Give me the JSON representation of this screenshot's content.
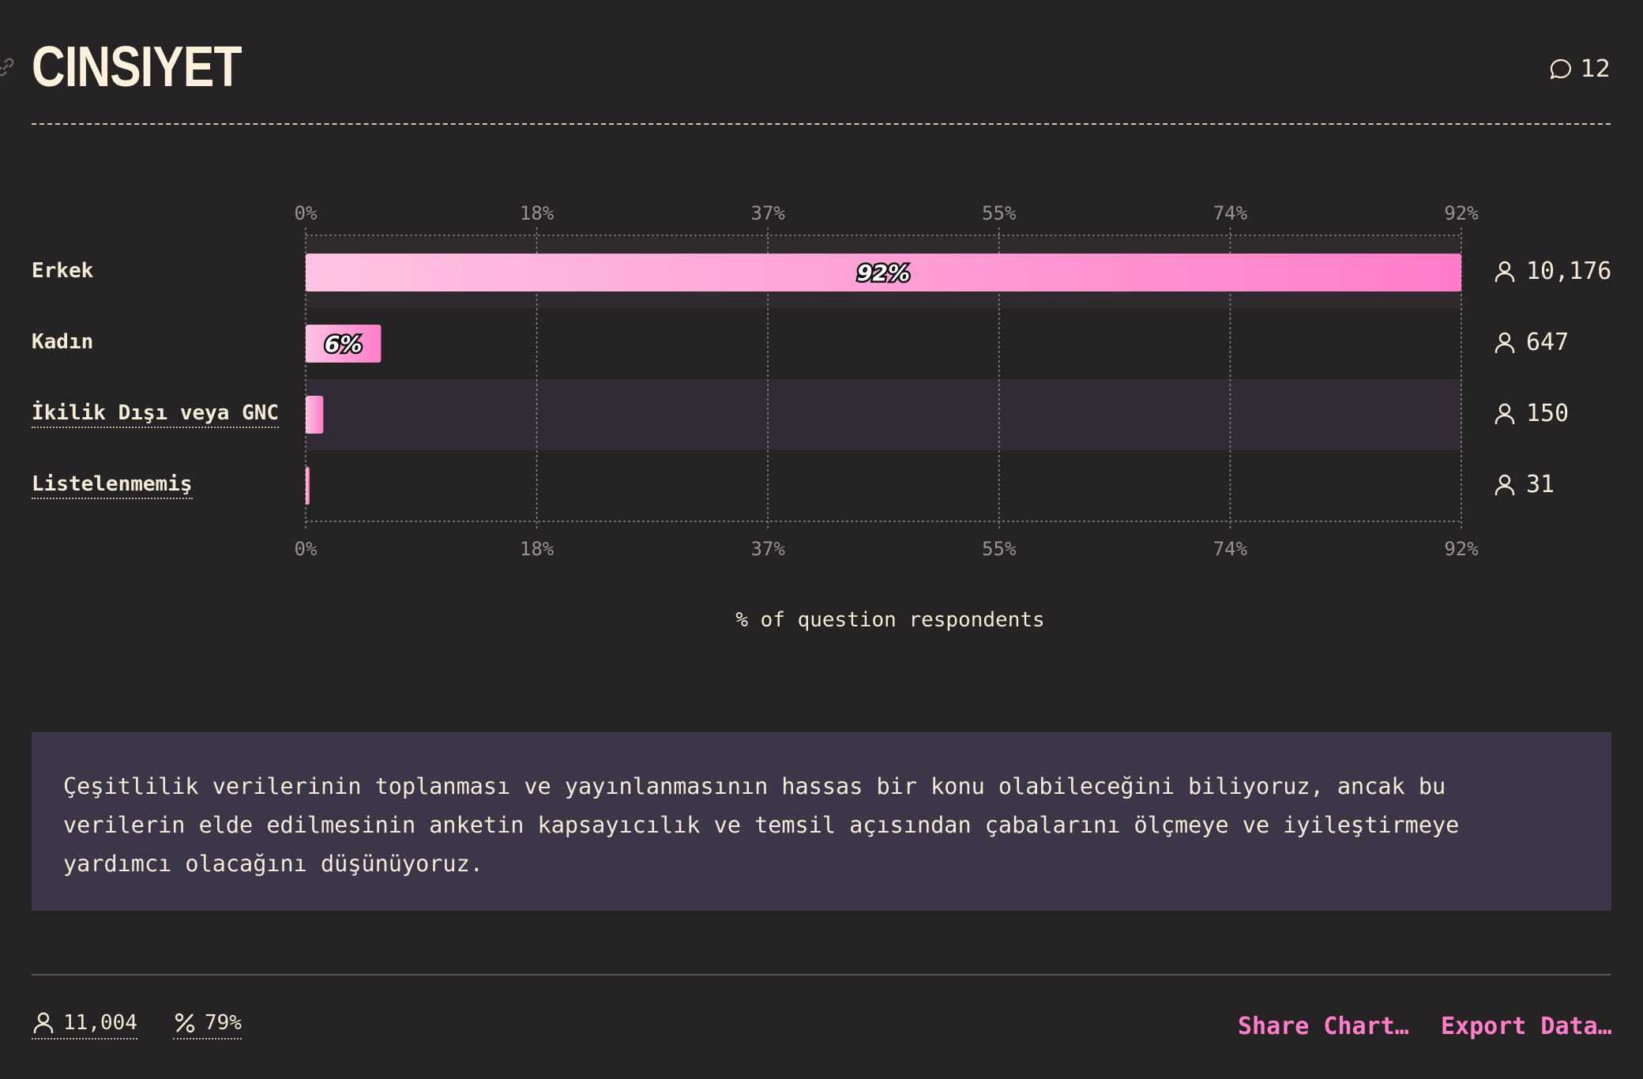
{
  "header": {
    "title": "CINSIYET",
    "comment_count": "12"
  },
  "chart_data": {
    "type": "bar",
    "orientation": "horizontal",
    "categories": [
      "Erkek",
      "Kadın",
      "İkilik Dışı veya GNC",
      "Listelenmemiş"
    ],
    "values": [
      92,
      6,
      1.4,
      0.3
    ],
    "value_labels": [
      "92%",
      "6%",
      "",
      ""
    ],
    "counts": [
      "10,176",
      "647",
      "150",
      "31"
    ],
    "xlabel": "% of question respondents",
    "ylabel": "",
    "xlim": [
      0,
      92
    ],
    "ticks": [
      "0%",
      "18%",
      "37%",
      "55%",
      "74%",
      "92%"
    ],
    "tick_values": [
      0,
      18.4,
      36.8,
      55.2,
      73.6,
      92
    ],
    "grid": true,
    "bar_color_start": "#ffc3e4",
    "bar_color_end": "#ff7cc8"
  },
  "note": {
    "text": "Çeşitlilik verilerinin toplanması ve yayınlanmasının hassas bir konu olabileceğini biliyoruz, ancak bu verilerin elde edilmesinin anketin kapsayıcılık ve temsil açısından çabalarını ölçmeye ve iyileştirmeye yardımcı olacağını düşünüyoruz."
  },
  "footer": {
    "respondents": "11,004",
    "percent": "79%",
    "share_label": "Share Chart…",
    "export_label": "Export Data…"
  },
  "colors": {
    "background": "#262324",
    "accent": "#ff7fc8",
    "note_bg": "#3d3548"
  },
  "icons": [
    "link-icon",
    "comment-icon",
    "person-icon",
    "percent-icon"
  ]
}
